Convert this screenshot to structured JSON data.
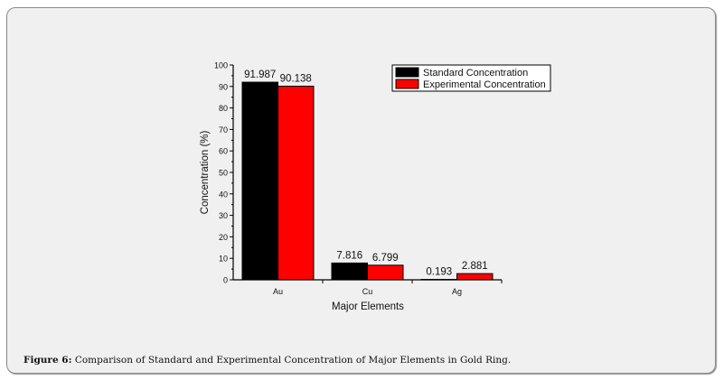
{
  "caption": {
    "label": "Figure 6:",
    "text": " Comparison of Standard and Experimental Concentration of Major Elements in Gold Ring."
  },
  "chart_data": {
    "type": "bar",
    "title": "",
    "xlabel": "Major Elements",
    "ylabel": "Concentration (%)",
    "ylim": [
      0,
      100
    ],
    "yticks": [
      0,
      10,
      20,
      30,
      40,
      50,
      60,
      70,
      80,
      90,
      100
    ],
    "categories": [
      "Au",
      "Cu",
      "Ag"
    ],
    "series": [
      {
        "name": "Standard Concentration",
        "color": "#000000",
        "values": [
          91.987,
          7.816,
          0.193
        ],
        "labels": [
          "91.987",
          "7.816",
          "0.193"
        ]
      },
      {
        "name": "Experimental Concentration",
        "color": "#ff0000",
        "values": [
          90.138,
          6.799,
          2.881
        ],
        "labels": [
          "90.138",
          "6.799",
          "2.881"
        ]
      }
    ],
    "legend": "top-right",
    "grid": false
  }
}
